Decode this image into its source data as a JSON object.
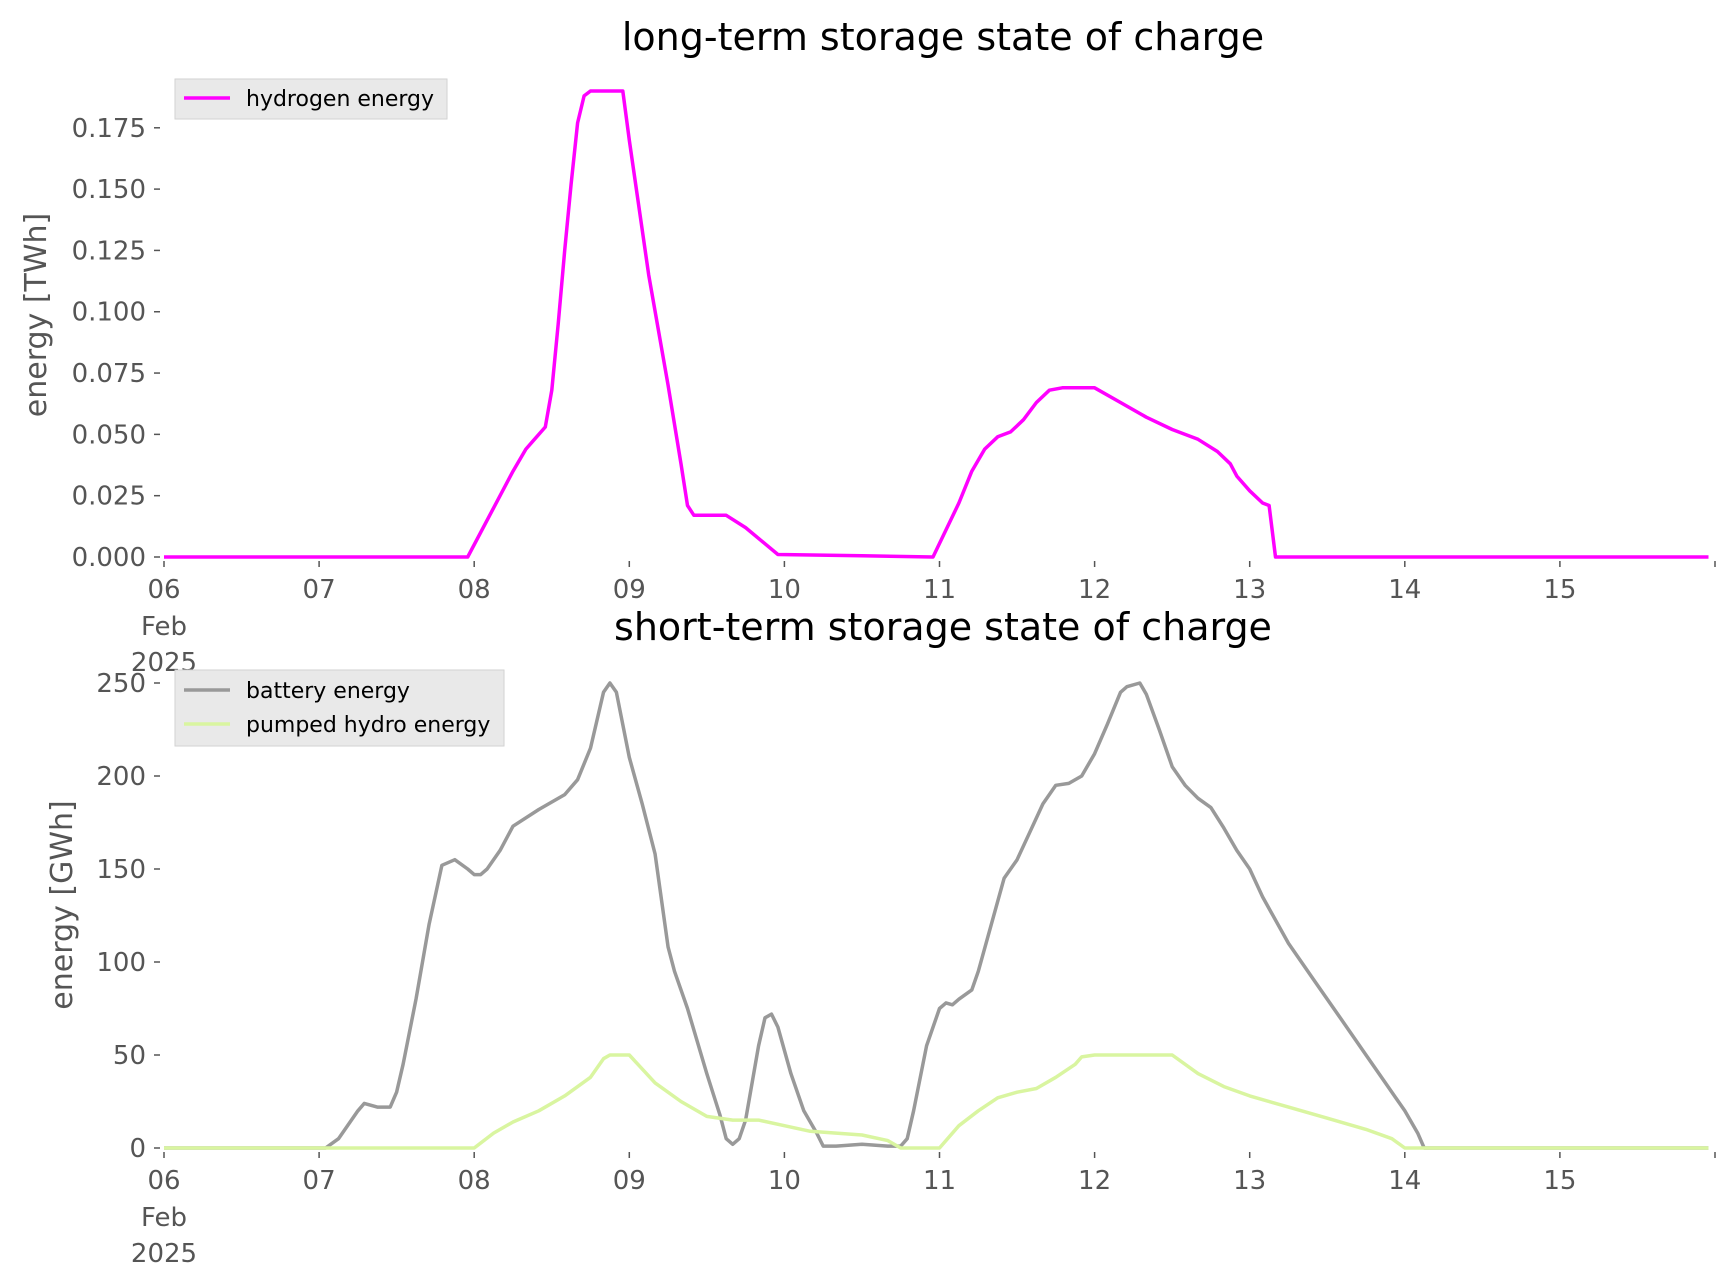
{
  "chart_data": [
    {
      "type": "line",
      "title": "long-term storage state of charge",
      "xlabel": "",
      "ylabel": "energy [TWh]",
      "xlim": [
        "2025-02-06",
        "2025-02-16"
      ],
      "ylim": [
        0,
        0.19
      ],
      "x_ticks": [
        "06",
        "07",
        "08",
        "09",
        "10",
        "11",
        "12",
        "13",
        "14",
        "15"
      ],
      "x_tick_sub": [
        "Feb",
        "2025"
      ],
      "y_ticks": [
        "0.000",
        "0.025",
        "0.050",
        "0.075",
        "0.100",
        "0.125",
        "0.150",
        "0.175"
      ],
      "legend_position": "upper left",
      "grid": false,
      "series": [
        {
          "name": "hydrogen energy",
          "color": "#ff00ff",
          "points": [
            [
              "2025-02-06 00:00",
              0.0
            ],
            [
              "2025-02-07 00:00",
              0.0
            ],
            [
              "2025-02-07 23:00",
              0.0
            ],
            [
              "2025-02-08 03:00",
              0.02
            ],
            [
              "2025-02-08 06:00",
              0.035
            ],
            [
              "2025-02-08 08:00",
              0.044
            ],
            [
              "2025-02-08 09:00",
              0.047
            ],
            [
              "2025-02-08 11:00",
              0.053
            ],
            [
              "2025-02-08 12:00",
              0.068
            ],
            [
              "2025-02-08 13:00",
              0.095
            ],
            [
              "2025-02-08 14:00",
              0.125
            ],
            [
              "2025-02-08 15:00",
              0.152
            ],
            [
              "2025-02-08 16:00",
              0.177
            ],
            [
              "2025-02-08 17:00",
              0.188
            ],
            [
              "2025-02-08 18:00",
              0.19
            ],
            [
              "2025-02-08 23:00",
              0.19
            ],
            [
              "2025-02-09 00:00",
              0.17
            ],
            [
              "2025-02-09 03:00",
              0.115
            ],
            [
              "2025-02-09 06:00",
              0.07
            ],
            [
              "2025-02-09 08:00",
              0.038
            ],
            [
              "2025-02-09 09:00",
              0.021
            ],
            [
              "2025-02-09 10:00",
              0.017
            ],
            [
              "2025-02-09 15:00",
              0.017
            ],
            [
              "2025-02-09 18:00",
              0.012
            ],
            [
              "2025-02-09 23:00",
              0.001
            ],
            [
              "2025-02-10 12:00",
              0.0005
            ],
            [
              "2025-02-10 23:00",
              0.0
            ],
            [
              "2025-02-11 03:00",
              0.022
            ],
            [
              "2025-02-11 05:00",
              0.035
            ],
            [
              "2025-02-11 07:00",
              0.044
            ],
            [
              "2025-02-11 09:00",
              0.049
            ],
            [
              "2025-02-11 11:00",
              0.051
            ],
            [
              "2025-02-11 13:00",
              0.056
            ],
            [
              "2025-02-11 15:00",
              0.063
            ],
            [
              "2025-02-11 17:00",
              0.068
            ],
            [
              "2025-02-11 19:00",
              0.069
            ],
            [
              "2025-02-12 00:00",
              0.069
            ],
            [
              "2025-02-12 04:00",
              0.063
            ],
            [
              "2025-02-12 08:00",
              0.057
            ],
            [
              "2025-02-12 12:00",
              0.052
            ],
            [
              "2025-02-12 16:00",
              0.048
            ],
            [
              "2025-02-12 19:00",
              0.043
            ],
            [
              "2025-02-12 21:00",
              0.038
            ],
            [
              "2025-02-12 22:00",
              0.033
            ],
            [
              "2025-02-13 00:00",
              0.027
            ],
            [
              "2025-02-13 02:00",
              0.022
            ],
            [
              "2025-02-13 03:00",
              0.021
            ],
            [
              "2025-02-13 04:00",
              0.0
            ],
            [
              "2025-02-15 23:00",
              0.0
            ]
          ]
        }
      ]
    },
    {
      "type": "line",
      "title": "short-term storage state of charge",
      "xlabel": "",
      "ylabel": "energy [GWh]",
      "xlim": [
        "2025-02-06",
        "2025-02-16"
      ],
      "ylim": [
        0,
        250
      ],
      "x_ticks": [
        "06",
        "07",
        "08",
        "09",
        "10",
        "11",
        "12",
        "13",
        "14",
        "15"
      ],
      "x_tick_sub": [
        "Feb",
        "2025"
      ],
      "y_ticks": [
        "0",
        "50",
        "100",
        "150",
        "200",
        "250"
      ],
      "legend_position": "upper left",
      "grid": false,
      "series": [
        {
          "name": "battery energy",
          "color": "#999999",
          "points": [
            [
              "2025-02-06 00:00",
              0
            ],
            [
              "2025-02-07 01:00",
              0
            ],
            [
              "2025-02-07 03:00",
              5
            ],
            [
              "2025-02-07 06:00",
              20
            ],
            [
              "2025-02-07 07:00",
              24
            ],
            [
              "2025-02-07 09:00",
              22
            ],
            [
              "2025-02-07 11:00",
              22
            ],
            [
              "2025-02-07 12:00",
              30
            ],
            [
              "2025-02-07 13:00",
              45
            ],
            [
              "2025-02-07 15:00",
              80
            ],
            [
              "2025-02-07 17:00",
              120
            ],
            [
              "2025-02-07 19:00",
              152
            ],
            [
              "2025-02-07 21:00",
              155
            ],
            [
              "2025-02-07 23:00",
              150
            ],
            [
              "2025-02-08 00:00",
              147
            ],
            [
              "2025-02-08 01:00",
              147
            ],
            [
              "2025-02-08 02:00",
              150
            ],
            [
              "2025-02-08 04:00",
              160
            ],
            [
              "2025-02-08 06:00",
              173
            ],
            [
              "2025-02-08 10:00",
              182
            ],
            [
              "2025-02-08 14:00",
              190
            ],
            [
              "2025-02-08 16:00",
              198
            ],
            [
              "2025-02-08 18:00",
              215
            ],
            [
              "2025-02-08 20:00",
              245
            ],
            [
              "2025-02-08 21:00",
              250
            ],
            [
              "2025-02-08 22:00",
              245
            ],
            [
              "2025-02-09 00:00",
              210
            ],
            [
              "2025-02-09 02:00",
              185
            ],
            [
              "2025-02-09 04:00",
              158
            ],
            [
              "2025-02-09 06:00",
              108
            ],
            [
              "2025-02-09 07:00",
              95
            ],
            [
              "2025-02-09 09:00",
              75
            ],
            [
              "2025-02-09 12:00",
              40
            ],
            [
              "2025-02-09 14:00",
              18
            ],
            [
              "2025-02-09 15:00",
              5
            ],
            [
              "2025-02-09 16:00",
              2
            ],
            [
              "2025-02-09 17:00",
              5
            ],
            [
              "2025-02-09 18:00",
              15
            ],
            [
              "2025-02-09 20:00",
              55
            ],
            [
              "2025-02-09 21:00",
              70
            ],
            [
              "2025-02-09 22:00",
              72
            ],
            [
              "2025-02-09 23:00",
              65
            ],
            [
              "2025-02-10 01:00",
              40
            ],
            [
              "2025-02-10 03:00",
              20
            ],
            [
              "2025-02-10 05:00",
              8
            ],
            [
              "2025-02-10 06:00",
              1
            ],
            [
              "2025-02-10 08:00",
              1
            ],
            [
              "2025-02-10 12:00",
              2
            ],
            [
              "2025-02-10 16:00",
              1
            ],
            [
              "2025-02-10 18:00",
              1
            ],
            [
              "2025-02-10 19:00",
              5
            ],
            [
              "2025-02-10 20:00",
              20
            ],
            [
              "2025-02-10 22:00",
              55
            ],
            [
              "2025-02-11 00:00",
              75
            ],
            [
              "2025-02-11 01:00",
              78
            ],
            [
              "2025-02-11 02:00",
              77
            ],
            [
              "2025-02-11 03:00",
              80
            ],
            [
              "2025-02-11 05:00",
              85
            ],
            [
              "2025-02-11 06:00",
              95
            ],
            [
              "2025-02-11 08:00",
              120
            ],
            [
              "2025-02-11 10:00",
              145
            ],
            [
              "2025-02-11 12:00",
              155
            ],
            [
              "2025-02-11 14:00",
              170
            ],
            [
              "2025-02-11 16:00",
              185
            ],
            [
              "2025-02-11 18:00",
              195
            ],
            [
              "2025-02-11 20:00",
              196
            ],
            [
              "2025-02-11 22:00",
              200
            ],
            [
              "2025-02-12 00:00",
              212
            ],
            [
              "2025-02-12 02:00",
              228
            ],
            [
              "2025-02-12 04:00",
              245
            ],
            [
              "2025-02-12 05:00",
              248
            ],
            [
              "2025-02-12 07:00",
              250
            ],
            [
              "2025-02-12 08:00",
              244
            ],
            [
              "2025-02-12 10:00",
              225
            ],
            [
              "2025-02-12 12:00",
              205
            ],
            [
              "2025-02-12 14:00",
              195
            ],
            [
              "2025-02-12 16:00",
              188
            ],
            [
              "2025-02-12 18:00",
              183
            ],
            [
              "2025-02-12 20:00",
              172
            ],
            [
              "2025-02-12 22:00",
              160
            ],
            [
              "2025-02-13 00:00",
              150
            ],
            [
              "2025-02-13 02:00",
              135
            ],
            [
              "2025-02-13 06:00",
              110
            ],
            [
              "2025-02-13 10:00",
              90
            ],
            [
              "2025-02-13 14:00",
              70
            ],
            [
              "2025-02-13 18:00",
              50
            ],
            [
              "2025-02-13 21:00",
              35
            ],
            [
              "2025-02-14 00:00",
              20
            ],
            [
              "2025-02-14 02:00",
              8
            ],
            [
              "2025-02-14 03:00",
              0
            ],
            [
              "2025-02-15 23:00",
              0
            ]
          ]
        },
        {
          "name": "pumped hydro energy",
          "color": "#d9f5a0",
          "points": [
            [
              "2025-02-06 00:00",
              0
            ],
            [
              "2025-02-08 00:00",
              0
            ],
            [
              "2025-02-08 03:00",
              8
            ],
            [
              "2025-02-08 06:00",
              14
            ],
            [
              "2025-02-08 10:00",
              20
            ],
            [
              "2025-02-08 14:00",
              28
            ],
            [
              "2025-02-08 18:00",
              38
            ],
            [
              "2025-02-08 20:00",
              48
            ],
            [
              "2025-02-08 21:00",
              50
            ],
            [
              "2025-02-09 00:00",
              50
            ],
            [
              "2025-02-09 04:00",
              35
            ],
            [
              "2025-02-09 08:00",
              25
            ],
            [
              "2025-02-09 12:00",
              17
            ],
            [
              "2025-02-09 16:00",
              15
            ],
            [
              "2025-02-09 20:00",
              15
            ],
            [
              "2025-02-10 00:00",
              12
            ],
            [
              "2025-02-10 04:00",
              9
            ],
            [
              "2025-02-10 08:00",
              8
            ],
            [
              "2025-02-10 12:00",
              7
            ],
            [
              "2025-02-10 16:00",
              4
            ],
            [
              "2025-02-10 18:00",
              0
            ],
            [
              "2025-02-11 00:00",
              0
            ],
            [
              "2025-02-11 03:00",
              12
            ],
            [
              "2025-02-11 06:00",
              20
            ],
            [
              "2025-02-11 09:00",
              27
            ],
            [
              "2025-02-11 12:00",
              30
            ],
            [
              "2025-02-11 15:00",
              32
            ],
            [
              "2025-02-11 18:00",
              38
            ],
            [
              "2025-02-11 21:00",
              45
            ],
            [
              "2025-02-11 22:00",
              49
            ],
            [
              "2025-02-12 00:00",
              50
            ],
            [
              "2025-02-12 06:00",
              50
            ],
            [
              "2025-02-12 08:00",
              50
            ],
            [
              "2025-02-12 12:00",
              50
            ],
            [
              "2025-02-12 16:00",
              40
            ],
            [
              "2025-02-12 20:00",
              33
            ],
            [
              "2025-02-13 00:00",
              28
            ],
            [
              "2025-02-13 06:00",
              22
            ],
            [
              "2025-02-13 12:00",
              16
            ],
            [
              "2025-02-13 18:00",
              10
            ],
            [
              "2025-02-13 22:00",
              5
            ],
            [
              "2025-02-14 00:00",
              0
            ],
            [
              "2025-02-15 23:00",
              0
            ]
          ]
        }
      ]
    }
  ]
}
